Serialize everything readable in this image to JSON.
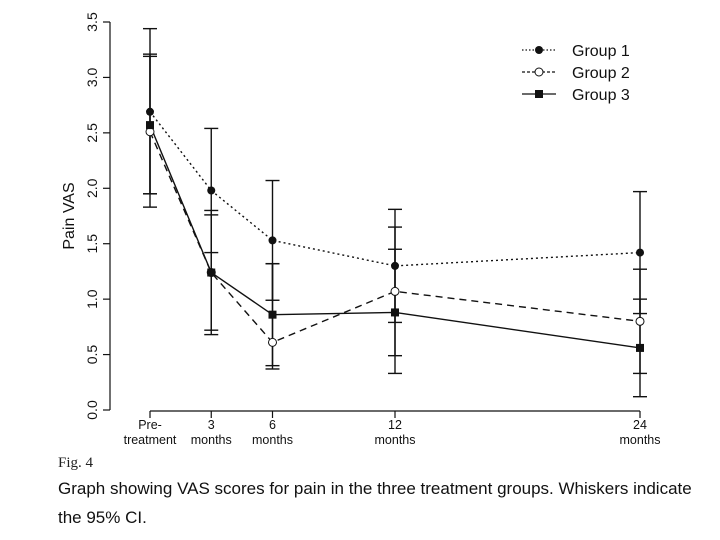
{
  "figure": {
    "label": "Fig. 4",
    "caption": "Graph showing VAS scores for pain in the three treatment groups. Whiskers indicate the 95% CI."
  },
  "chart_data": {
    "type": "line",
    "ylabel": "Pain VAS",
    "xlabel": "",
    "ylim": [
      0,
      3.5
    ],
    "yticks": [
      "0.0",
      "0.5",
      "1.0",
      "1.5",
      "2.0",
      "2.5",
      "3.0",
      "3.5"
    ],
    "x_months": [
      0,
      3,
      6,
      12,
      24
    ],
    "x_tick_labels": [
      [
        "Pre-",
        "treatment"
      ],
      [
        "3",
        "months"
      ],
      [
        "6",
        "months"
      ],
      [
        "12",
        "months"
      ],
      [
        "24",
        "months"
      ]
    ],
    "legend_position": "top-right",
    "grid": false,
    "series": [
      {
        "name": "Group 1",
        "marker": "filled-circle",
        "line": "dotted",
        "values": [
          2.69,
          1.98,
          1.53,
          1.3,
          1.42
        ],
        "ci_low": [
          1.95,
          1.42,
          0.99,
          0.79,
          0.87
        ],
        "ci_high": [
          3.44,
          2.54,
          2.07,
          1.81,
          1.97
        ]
      },
      {
        "name": "Group 2",
        "marker": "open-circle",
        "line": "dashed",
        "values": [
          2.51,
          1.24,
          0.61,
          1.07,
          0.8
        ],
        "ci_low": [
          1.83,
          0.68,
          0.37,
          0.49,
          0.33
        ],
        "ci_high": [
          3.19,
          1.8,
          1.32,
          1.65,
          1.27
        ]
      },
      {
        "name": "Group 3",
        "marker": "filled-square",
        "line": "solid",
        "values": [
          2.57,
          1.24,
          0.86,
          0.88,
          0.56
        ],
        "ci_low": [
          1.95,
          0.72,
          0.4,
          0.33,
          0.12
        ],
        "ci_high": [
          3.21,
          1.76,
          1.32,
          1.45,
          1.0
        ]
      }
    ]
  }
}
